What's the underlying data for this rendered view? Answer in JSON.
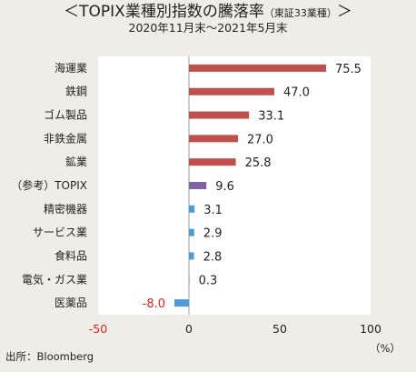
{
  "title": {
    "main": "＜TOPIX業種別指数の騰落率",
    "paren": "（東証33業種）",
    "close": "＞"
  },
  "subtitle": "2020年11月末～2021年5月末",
  "source": "出所：Bloomberg",
  "unit": "（%）",
  "colors": {
    "background": "#eeede8",
    "plot_background": "#ffffff",
    "bar_red": "#c0504d",
    "bar_purple": "#8064a2",
    "bar_blue": "#4f9bd6",
    "negative_text": "#e3201b"
  },
  "chart_data": {
    "type": "bar",
    "orientation": "horizontal",
    "categories": [
      "海運業",
      "鉄鋼",
      "ゴム製品",
      "非鉄金属",
      "鉱業",
      "（参考）TOPIX",
      "精密機器",
      "サービス業",
      "食料品",
      "電気・ガス業",
      "医薬品"
    ],
    "values": [
      75.5,
      47.0,
      33.1,
      27.0,
      25.8,
      9.6,
      3.1,
      2.9,
      2.8,
      0.3,
      -8.0
    ],
    "value_labels": [
      "75.5",
      "47.0",
      "33.1",
      "27.0",
      "25.8",
      "9.6",
      "3.1",
      "2.9",
      "2.8",
      "0.3",
      "-8.0"
    ],
    "bar_colors": [
      "#c0504d",
      "#c0504d",
      "#c0504d",
      "#c0504d",
      "#c0504d",
      "#8064a2",
      "#4f9bd6",
      "#4f9bd6",
      "#4f9bd6",
      "#4f9bd6",
      "#4f9bd6"
    ],
    "xlim": [
      -50,
      100
    ],
    "xticks": [
      -50,
      0,
      50,
      100
    ],
    "xtick_labels": [
      "-50",
      "0",
      "50",
      "100"
    ],
    "grid": false
  }
}
